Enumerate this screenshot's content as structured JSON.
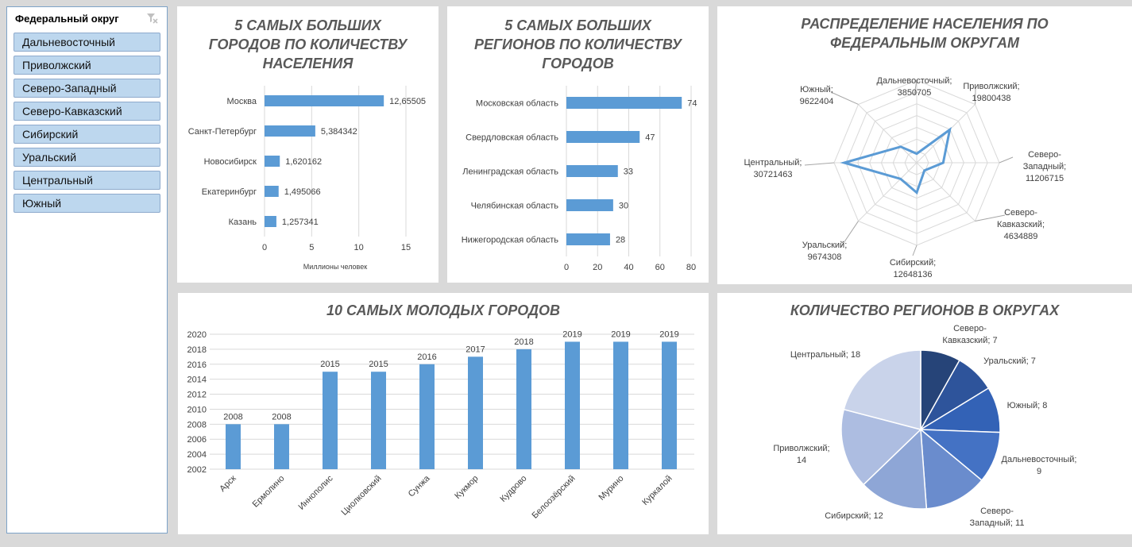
{
  "slicer": {
    "title": "Федеральный округ",
    "icon": "clear-filter-icon",
    "items": [
      "Дальневосточный",
      "Приволжский",
      "Северо-Западный",
      "Северо-Кавказский",
      "Сибирский",
      "Уральский",
      "Центральный",
      "Южный"
    ]
  },
  "colors": {
    "bar": "#5b9bd5",
    "slicer_item_bg": "#bdd7ee",
    "title_text": "#595959"
  },
  "chart_data": [
    {
      "id": "cities",
      "type": "bar",
      "orientation": "horizontal",
      "title_lines": [
        "5 САМЫХ БОЛЬШИХ",
        "ГОРОДОВ ПО КОЛИЧЕСТВУ",
        "НАСЕЛЕНИЯ"
      ],
      "categories": [
        "Москва",
        "Санкт-Петербург",
        "Новосибирск",
        "Екатеринбург",
        "Казань"
      ],
      "values": [
        12.65505,
        5.384342,
        1.620162,
        1.495066,
        1.257341
      ],
      "value_labels": [
        "12,65505",
        "5,384342",
        "1,620162",
        "1,495066",
        "1,257341"
      ],
      "xlabel": "Миллионы человек",
      "xlim": [
        0,
        15
      ],
      "xticks": [
        "0",
        "5",
        "10",
        "15"
      ],
      "grid": true
    },
    {
      "id": "regions",
      "type": "bar",
      "orientation": "horizontal",
      "title_lines": [
        "5 САМЫХ БОЛЬШИХ",
        "РЕГИОНОВ ПО КОЛИЧЕСТВУ",
        "ГОРОДОВ"
      ],
      "categories": [
        "Московская область",
        "Свердловская область",
        "Ленинградская область",
        "Челябинская область",
        "Нижегородская область"
      ],
      "values": [
        74,
        47,
        33,
        30,
        28
      ],
      "value_labels": [
        "74",
        "47",
        "33",
        "30",
        "28"
      ],
      "xlim": [
        0,
        80
      ],
      "xticks": [
        "0",
        "20",
        "40",
        "60",
        "80"
      ],
      "grid": true
    },
    {
      "id": "radar",
      "type": "radar",
      "title_lines": [
        "РАСПРЕДЕЛЕНИЕ НАСЕЛЕНИЯ ПО",
        "ФЕДЕРАЛЬНЫМ ОКРУГАМ"
      ],
      "categories": [
        "Дальневосточный",
        "Приволжский",
        "Северо-Западный",
        "Северо-Кавказский",
        "Сибирский",
        "Уральский",
        "Центральный",
        "Южный"
      ],
      "values": [
        3850705,
        19800438,
        11206715,
        4634889,
        12648136,
        9674308,
        30721463,
        9622404
      ],
      "labels": [
        [
          "Дальневосточный;",
          "3850705"
        ],
        [
          "Приволжский;",
          "19800438"
        ],
        [
          "Северо-",
          "Западный;",
          "11206715"
        ],
        [
          "Северо-",
          "Кавказский;",
          "4634889"
        ],
        [
          "Сибирский;",
          "12648136"
        ],
        [
          "Уральский;",
          "9674308"
        ],
        [
          "Центральный;",
          "30721463"
        ],
        [
          "Южный;",
          "9622404"
        ]
      ]
    },
    {
      "id": "young",
      "type": "bar",
      "orientation": "vertical",
      "title_lines": [
        "10 САМЫХ МОЛОДЫХ ГОРОДОВ"
      ],
      "categories": [
        "Арск",
        "Ермолино",
        "Иннополис",
        "Циолковский",
        "Сунжа",
        "Кукмор",
        "Кудрово",
        "Белоозёрский",
        "Мурино",
        "Куркалой"
      ],
      "values": [
        2008,
        2008,
        2015,
        2015,
        2016,
        2017,
        2018,
        2019,
        2019,
        2019
      ],
      "value_labels": [
        "2008",
        "2008",
        "2015",
        "2015",
        "2016",
        "2017",
        "2018",
        "2019",
        "2019",
        "2019"
      ],
      "ylim": [
        2002,
        2020
      ],
      "yticks": [
        "2002",
        "2004",
        "2006",
        "2008",
        "2010",
        "2012",
        "2014",
        "2016",
        "2018",
        "2020"
      ],
      "grid": true
    },
    {
      "id": "pie",
      "type": "pie",
      "title_lines": [
        "КОЛИЧЕСТВО РЕГИОНОВ В ОКРУГАХ"
      ],
      "categories": [
        "Северо-Кавказский",
        "Уральский",
        "Южный",
        "Дальневосточный",
        "Северо-Западный",
        "Сибирский",
        "Приволжский",
        "Центральный"
      ],
      "values": [
        7,
        7,
        8,
        9,
        11,
        12,
        14,
        18
      ],
      "labels": [
        [
          "Северо-",
          "Кавказский; 7"
        ],
        [
          "Уральский; 7"
        ],
        [
          "Южный; 8"
        ],
        [
          "Дальневосточный;",
          "9"
        ],
        [
          "Северо-",
          "Западный; 11"
        ],
        [
          "Сибирский; 12"
        ],
        [
          "Приволжский;",
          "14"
        ],
        [
          "Центральный; 18"
        ]
      ],
      "colors": [
        "#264478",
        "#2e549b",
        "#3362b6",
        "#4472c4",
        "#6a8ccd",
        "#8ea6d6",
        "#adbde1",
        "#c9d3ea"
      ]
    }
  ]
}
